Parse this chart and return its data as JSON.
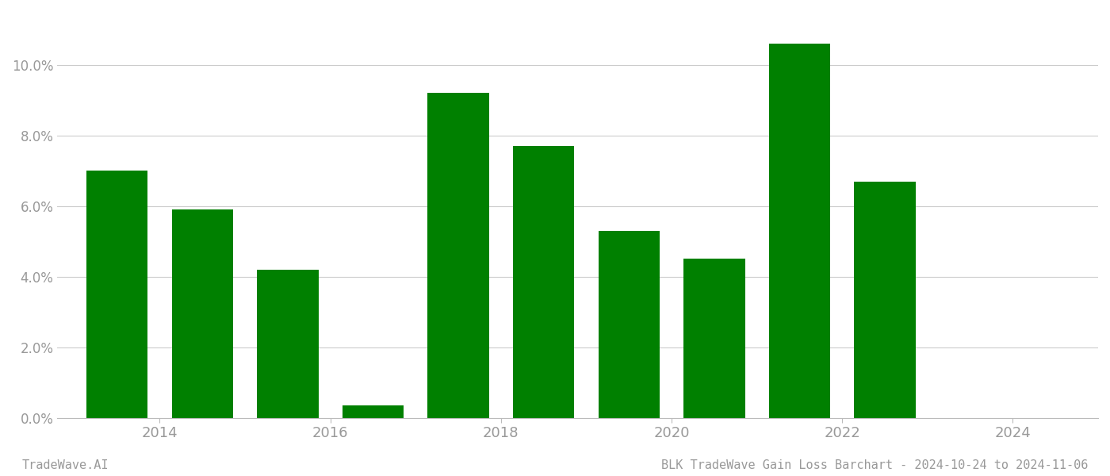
{
  "years": [
    2013.5,
    2014.5,
    2015.5,
    2016.5,
    2017.5,
    2018.5,
    2019.5,
    2020.5,
    2021.5,
    2022.5
  ],
  "values": [
    0.07,
    0.059,
    0.042,
    0.0035,
    0.092,
    0.077,
    0.053,
    0.045,
    0.106,
    0.067
  ],
  "bar_color": "#008000",
  "title": "BLK TradeWave Gain Loss Barchart - 2024-10-24 to 2024-11-06",
  "watermark": "TradeWave.AI",
  "ylim": [
    0,
    0.115
  ],
  "yticks": [
    0.0,
    0.02,
    0.04,
    0.06,
    0.08,
    0.1
  ],
  "xlim": [
    2012.8,
    2025.0
  ],
  "xticks": [
    2014,
    2016,
    2018,
    2020,
    2022,
    2024
  ],
  "background_color": "#ffffff",
  "grid_color": "#cccccc",
  "tick_color": "#999999",
  "title_fontsize": 11,
  "watermark_fontsize": 11,
  "bar_width": 0.72
}
